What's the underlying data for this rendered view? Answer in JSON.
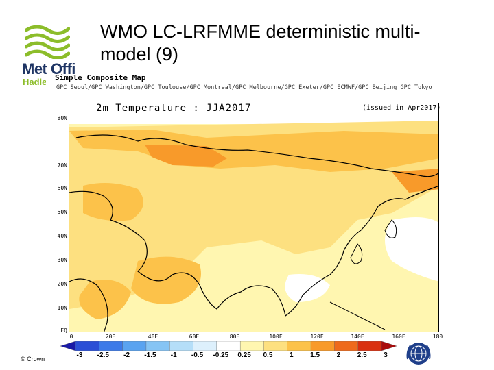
{
  "slide": {
    "title": "WMO LC-LRFMME deterministic multi-model (9)",
    "copyright": "© Crown"
  },
  "logo": {
    "line1": "Met Office",
    "line2": "Hadley Centre"
  },
  "map": {
    "header_title": "Simple Composite Map",
    "models": "GPC_Seoul/GPC_Washington/GPC_Toulouse/GPC_Montreal/GPC_Melbourne/GPC_Exeter/GPC_ECMWF/GPC_Beijing GPC_Tokyo",
    "title": "2m Temperature : JJA2017",
    "issued": "(issued in Apr2017)",
    "lat_labels": [
      "80N",
      "70N",
      "60N",
      "50N",
      "40N",
      "30N",
      "20N",
      "10N",
      "EQ"
    ],
    "lon_labels": [
      "0",
      "20E",
      "40E",
      "60E",
      "80E",
      "100E",
      "120E",
      "140E",
      "160E",
      "180"
    ],
    "colors": {
      "land_outline": "#000000",
      "ocean": "#ffffff"
    }
  },
  "colorbar": {
    "labels": [
      "-3",
      "-2.5",
      "-2",
      "-1.5",
      "-1",
      "-0.5",
      "-0.25",
      "0.25",
      "0.5",
      "1",
      "1.5",
      "2",
      "2.5",
      "3"
    ],
    "colors": [
      "#1a1aa6",
      "#2b4fd6",
      "#3d7ae8",
      "#5aa3f0",
      "#86c4f4",
      "#b5def8",
      "#ddf0fc",
      "#ffffff",
      "#fff6b0",
      "#fde080",
      "#fcc24a",
      "#f89a2a",
      "#ee6a1c",
      "#d93010",
      "#a80c0c"
    ]
  }
}
